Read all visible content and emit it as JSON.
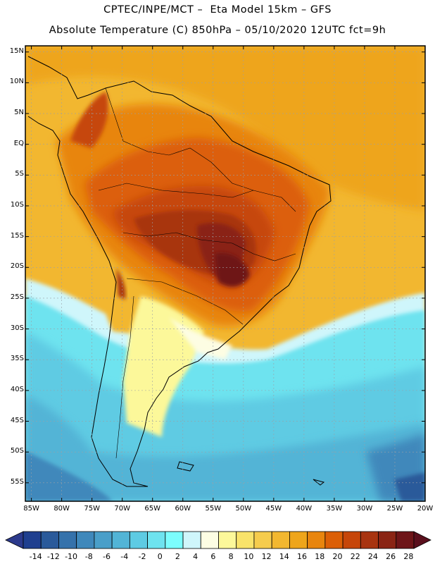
{
  "title_line1": "CPTEC/INPE/MCT –  Eta Model 15km – GFS",
  "title_line2": "Absolute Temperature (C) 850hPa – 05/10/2020 12UTC fct=9h",
  "map": {
    "lat_labels": [
      "15N",
      "10N",
      "5N",
      "EQ",
      "5S",
      "10S",
      "15S",
      "20S",
      "25S",
      "30S",
      "35S",
      "40S",
      "45S",
      "50S",
      "55S"
    ],
    "lon_labels": [
      "85W",
      "80W",
      "75W",
      "70W",
      "65W",
      "60W",
      "55W",
      "50W",
      "45W",
      "40W",
      "35W",
      "30W",
      "25W",
      "20W"
    ],
    "lat_range": [
      -58,
      16
    ],
    "lon_range": [
      -86,
      -20
    ]
  },
  "colorbar": {
    "labels": [
      "-14",
      "-12",
      "-10",
      "-8",
      "-6",
      "-4",
      "-2",
      "0",
      "2",
      "4",
      "6",
      "8",
      "10",
      "12",
      "14",
      "16",
      "18",
      "20",
      "22",
      "24",
      "26",
      "28"
    ],
    "colors": [
      "#1f3f8f",
      "#2a5a9a",
      "#3572ab",
      "#3f88bb",
      "#4a9fc9",
      "#52b4d6",
      "#5ecbe3",
      "#6ee3ef",
      "#7cfdfd",
      "#cff6fb",
      "#fdfde3",
      "#fcf89a",
      "#f9e36a",
      "#f6cc4d",
      "#f2b730",
      "#eea51b",
      "#e8850e",
      "#dc5f07",
      "#c6460a",
      "#a83410",
      "#8a2414",
      "#6e1518"
    ]
  }
}
